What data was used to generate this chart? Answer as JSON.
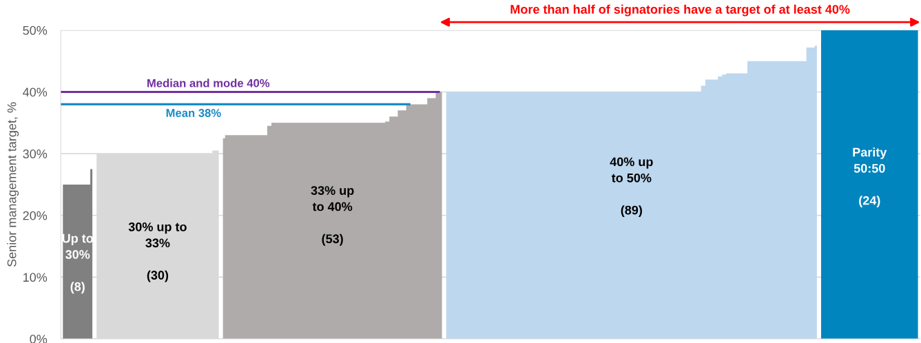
{
  "chart_data": {
    "type": "area",
    "ylabel": "Senior management target, %",
    "categories": [
      null,
      null,
      null,
      null,
      null,
      null,
      null,
      null,
      null,
      null,
      null,
      null,
      null,
      null,
      null,
      null,
      null,
      null,
      null,
      null,
      null,
      null,
      null,
      null,
      null,
      null,
      null,
      null,
      null,
      null,
      null,
      null,
      null,
      null,
      null,
      null,
      null,
      null,
      null,
      null,
      null,
      null,
      null,
      null,
      null,
      null,
      null,
      null,
      null,
      null,
      null,
      null,
      null,
      null,
      null,
      null,
      null,
      null,
      null,
      null,
      null,
      null,
      null,
      null,
      null,
      null,
      null,
      null,
      null,
      null,
      null,
      null,
      null,
      null,
      null,
      null,
      null,
      null,
      null,
      null,
      null,
      null,
      null,
      null,
      null,
      null,
      null,
      null,
      null,
      null,
      null,
      null,
      null,
      null,
      null,
      null,
      null,
      null,
      null,
      null,
      null,
      null,
      null,
      null,
      null,
      null,
      null,
      null,
      null,
      null,
      null,
      null,
      null,
      null,
      null,
      null,
      null,
      null,
      null,
      null,
      null,
      null,
      null,
      null,
      null,
      null,
      null,
      null,
      null,
      null,
      null,
      null,
      null,
      null,
      null,
      null,
      null,
      null,
      null,
      null,
      null,
      null,
      null,
      null,
      null,
      null,
      null,
      null,
      null,
      null,
      null,
      null,
      null,
      null,
      null,
      null,
      null,
      null,
      null,
      null,
      null,
      null,
      null,
      null,
      null,
      null,
      null,
      null,
      null,
      null,
      null,
      null,
      null,
      null,
      null,
      null,
      null,
      null,
      null,
      null,
      null,
      null,
      null,
      null,
      null,
      null,
      null,
      null,
      null,
      null,
      null,
      null,
      null,
      null,
      null,
      null,
      null,
      null,
      null,
      null,
      null,
      null,
      null,
      null
    ],
    "series": [
      {
        "color": "#808080",
        "values": [
          25,
          25,
          25,
          25,
          25,
          25,
          25,
          27.5,
          null,
          null,
          null,
          null,
          null,
          null,
          null,
          null,
          null,
          null,
          null,
          null,
          null,
          null,
          null,
          null,
          null,
          null,
          null,
          null,
          null,
          null,
          null,
          null,
          null,
          null,
          null,
          null,
          null,
          null,
          null,
          null,
          null,
          null,
          null,
          null,
          null,
          null,
          null,
          null,
          null,
          null,
          null,
          null,
          null,
          null,
          null,
          null,
          null,
          null,
          null,
          null,
          null,
          null,
          null,
          null,
          null,
          null,
          null,
          null,
          null,
          null,
          null,
          null,
          null,
          null,
          null,
          null,
          null,
          null,
          null,
          null,
          null,
          null,
          null,
          null,
          null,
          null,
          null,
          null,
          null,
          null,
          null,
          null,
          null,
          null,
          null,
          null,
          null,
          null,
          null,
          null,
          null,
          null,
          null,
          null,
          null,
          null,
          null,
          null,
          null,
          null,
          null,
          null,
          null,
          null,
          null,
          null,
          null,
          null,
          null,
          null,
          null,
          null,
          null,
          null,
          null,
          null,
          null,
          null,
          null,
          null,
          null,
          null,
          null,
          null,
          null,
          null,
          null,
          null,
          null,
          null,
          null,
          null,
          null,
          null,
          null,
          null,
          null,
          null,
          null,
          null,
          null,
          null,
          null,
          null,
          null,
          null,
          null,
          null,
          null,
          null,
          null,
          null,
          null,
          null,
          null,
          null,
          null,
          null,
          null,
          null,
          null,
          null,
          null,
          null,
          null,
          null,
          null,
          null,
          null,
          null,
          null,
          null,
          null,
          null,
          null,
          null,
          null,
          null,
          null,
          null,
          null,
          null,
          null,
          null,
          null,
          null,
          null,
          null,
          null,
          null,
          null,
          null,
          null,
          null
        ]
      },
      {
        "color": "#d9d9d9",
        "values": [
          null,
          null,
          null,
          null,
          null,
          null,
          null,
          null,
          30,
          30,
          30,
          30,
          30,
          30,
          30,
          30,
          30,
          30,
          30,
          30,
          30,
          30,
          30,
          30,
          30,
          30,
          30,
          30,
          30,
          30,
          30,
          30,
          30,
          30,
          30,
          30,
          30.5,
          30.5,
          null,
          null,
          null,
          null,
          null,
          null,
          null,
          null,
          null,
          null,
          null,
          null,
          null,
          null,
          null,
          null,
          null,
          null,
          null,
          null,
          null,
          null,
          null,
          null,
          null,
          null,
          null,
          null,
          null,
          null,
          null,
          null,
          null,
          null,
          null,
          null,
          null,
          null,
          null,
          null,
          null,
          null,
          null,
          null,
          null,
          null,
          null,
          null,
          null,
          null,
          null,
          null,
          null,
          null,
          null,
          null,
          null,
          null,
          null,
          null,
          null,
          null,
          null,
          null,
          null,
          null,
          null,
          null,
          null,
          null,
          null,
          null,
          null,
          null,
          null,
          null,
          null,
          null,
          null,
          null,
          null,
          null,
          null,
          null,
          null,
          null,
          null,
          null,
          null,
          null,
          null,
          null,
          null,
          null,
          null,
          null,
          null,
          null,
          null,
          null,
          null,
          null,
          null,
          null,
          null,
          null,
          null,
          null,
          null,
          null,
          null,
          null,
          null,
          null,
          null,
          null,
          null,
          null,
          null,
          null,
          null,
          null,
          null,
          null,
          null,
          null,
          null,
          null,
          null,
          null,
          null,
          null,
          null,
          null,
          null,
          null,
          null,
          null,
          null,
          null,
          null,
          null,
          null,
          null,
          null,
          null,
          null,
          null,
          null,
          null,
          null,
          null,
          null,
          null,
          null,
          null,
          null,
          null,
          null,
          null,
          null,
          null,
          null,
          null,
          null,
          null
        ]
      },
      {
        "color": "#afabab",
        "values": [
          null,
          null,
          null,
          null,
          null,
          null,
          null,
          null,
          null,
          null,
          null,
          null,
          null,
          null,
          null,
          null,
          null,
          null,
          null,
          null,
          null,
          null,
          null,
          null,
          null,
          null,
          null,
          null,
          null,
          null,
          null,
          null,
          null,
          null,
          null,
          null,
          null,
          null,
          32.5,
          33,
          33,
          33,
          33,
          33,
          33,
          33,
          33,
          33,
          33,
          34.5,
          35,
          35,
          35,
          35,
          35,
          35,
          35,
          35,
          35,
          35,
          35,
          35,
          35,
          35,
          35,
          35,
          35,
          35,
          35,
          35,
          35,
          35,
          35,
          35,
          35,
          35,
          35,
          35.2,
          36,
          36,
          37,
          37,
          38,
          38,
          38,
          38,
          38,
          39,
          39,
          40,
          40,
          null,
          null,
          null,
          null,
          null,
          null,
          null,
          null,
          null,
          null,
          null,
          null,
          null,
          null,
          null,
          null,
          null,
          null,
          null,
          null,
          null,
          null,
          null,
          null,
          null,
          null,
          null,
          null,
          null,
          null,
          null,
          null,
          null,
          null,
          null,
          null,
          null,
          null,
          null,
          null,
          null,
          null,
          null,
          null,
          null,
          null,
          null,
          null,
          null,
          null,
          null,
          null,
          null,
          null,
          null,
          null,
          null,
          null,
          null,
          null,
          null,
          null,
          null,
          null,
          null,
          null,
          null,
          null,
          null,
          null,
          null,
          null,
          null,
          null,
          null,
          null,
          null,
          null,
          null,
          null,
          null,
          null,
          null,
          null,
          null,
          null,
          null,
          null,
          null,
          null,
          null,
          null,
          null,
          null,
          null,
          null,
          null,
          null,
          null,
          null,
          null,
          null,
          null,
          null,
          null,
          null,
          null,
          null,
          null,
          null,
          null,
          null,
          null
        ]
      },
      {
        "color": "#bdd7ee",
        "values": [
          null,
          null,
          null,
          null,
          null,
          null,
          null,
          null,
          null,
          null,
          null,
          null,
          null,
          null,
          null,
          null,
          null,
          null,
          null,
          null,
          null,
          null,
          null,
          null,
          null,
          null,
          null,
          null,
          null,
          null,
          null,
          null,
          null,
          null,
          null,
          null,
          null,
          null,
          null,
          null,
          null,
          null,
          null,
          null,
          null,
          null,
          null,
          null,
          null,
          null,
          null,
          null,
          null,
          null,
          null,
          null,
          null,
          null,
          null,
          null,
          null,
          null,
          null,
          null,
          null,
          null,
          null,
          null,
          null,
          null,
          null,
          null,
          null,
          null,
          null,
          null,
          null,
          null,
          null,
          null,
          null,
          null,
          null,
          null,
          null,
          null,
          null,
          null,
          null,
          null,
          null,
          40,
          40,
          40,
          40,
          40,
          40,
          40,
          40,
          40,
          40,
          40,
          40,
          40,
          40,
          40,
          40,
          40,
          40,
          40,
          40,
          40,
          40,
          40,
          40,
          40,
          40,
          40,
          40,
          40,
          40,
          40,
          40,
          40,
          40,
          40,
          40,
          40,
          40,
          40,
          40,
          40,
          40,
          40,
          40,
          40,
          40,
          40,
          40,
          40,
          40,
          40,
          40,
          40,
          40,
          40,
          40,
          40,
          40,
          40,
          40,
          40,
          41,
          42,
          42,
          42,
          42.5,
          42.8,
          43,
          43,
          43,
          43,
          43,
          45,
          45,
          45,
          45,
          45,
          45,
          45,
          45,
          45,
          45,
          45,
          45,
          45,
          45,
          47.2,
          47.2,
          47.5,
          null,
          null,
          null,
          null,
          null,
          null,
          null,
          null,
          null,
          null,
          null,
          null,
          null,
          null,
          null,
          null,
          null,
          null,
          null,
          null,
          null,
          null,
          null,
          null
        ]
      },
      {
        "color": "#0085bf",
        "values": [
          null,
          null,
          null,
          null,
          null,
          null,
          null,
          null,
          null,
          null,
          null,
          null,
          null,
          null,
          null,
          null,
          null,
          null,
          null,
          null,
          null,
          null,
          null,
          null,
          null,
          null,
          null,
          null,
          null,
          null,
          null,
          null,
          null,
          null,
          null,
          null,
          null,
          null,
          null,
          null,
          null,
          null,
          null,
          null,
          null,
          null,
          null,
          null,
          null,
          null,
          null,
          null,
          null,
          null,
          null,
          null,
          null,
          null,
          null,
          null,
          null,
          null,
          null,
          null,
          null,
          null,
          null,
          null,
          null,
          null,
          null,
          null,
          null,
          null,
          null,
          null,
          null,
          null,
          null,
          null,
          null,
          null,
          null,
          null,
          null,
          null,
          null,
          null,
          null,
          null,
          null,
          null,
          null,
          null,
          null,
          null,
          null,
          null,
          null,
          null,
          null,
          null,
          null,
          null,
          null,
          null,
          null,
          null,
          null,
          null,
          null,
          null,
          null,
          null,
          null,
          null,
          null,
          null,
          null,
          null,
          null,
          null,
          null,
          null,
          null,
          null,
          null,
          null,
          null,
          null,
          null,
          null,
          null,
          null,
          null,
          null,
          null,
          null,
          null,
          null,
          null,
          null,
          null,
          null,
          null,
          null,
          null,
          null,
          null,
          null,
          null,
          null,
          null,
          null,
          null,
          null,
          null,
          null,
          null,
          null,
          null,
          null,
          null,
          null,
          null,
          null,
          null,
          null,
          null,
          null,
          null,
          null,
          null,
          null,
          null,
          null,
          null,
          null,
          null,
          null,
          50,
          50,
          50,
          50,
          50,
          50,
          50,
          50,
          50,
          50,
          50,
          50,
          50,
          50,
          50,
          50,
          50,
          50,
          50,
          50,
          50,
          50,
          50,
          50
        ]
      }
    ],
    "ylim": [
      0,
      50
    ],
    "yticks": [
      {
        "value": 0,
        "label": "0%"
      },
      {
        "value": 10,
        "label": "10%"
      },
      {
        "value": 20,
        "label": "20%"
      },
      {
        "value": 30,
        "label": "30%"
      },
      {
        "value": 40,
        "label": "40%"
      },
      {
        "value": 50,
        "label": "50%"
      }
    ],
    "grid": "y",
    "ref_lines": [
      {
        "axis": "y",
        "value": 40,
        "label": "Median and mode 40%",
        "color": "#7030a0"
      },
      {
        "axis": "y",
        "value": 38,
        "label": "Mean 38%",
        "color": "#1a8bc6"
      }
    ],
    "annotations": [
      "Up to\n30%\n\n(8)",
      "30% up to\n33%\n\n(30)",
      "33% up\nto 40%\n\n(53)",
      "40% up\nto 50%\n\n(89)",
      "Parity\n50:50\n\n(24)",
      "More than half of signatories have a target of at least 40%"
    ]
  }
}
